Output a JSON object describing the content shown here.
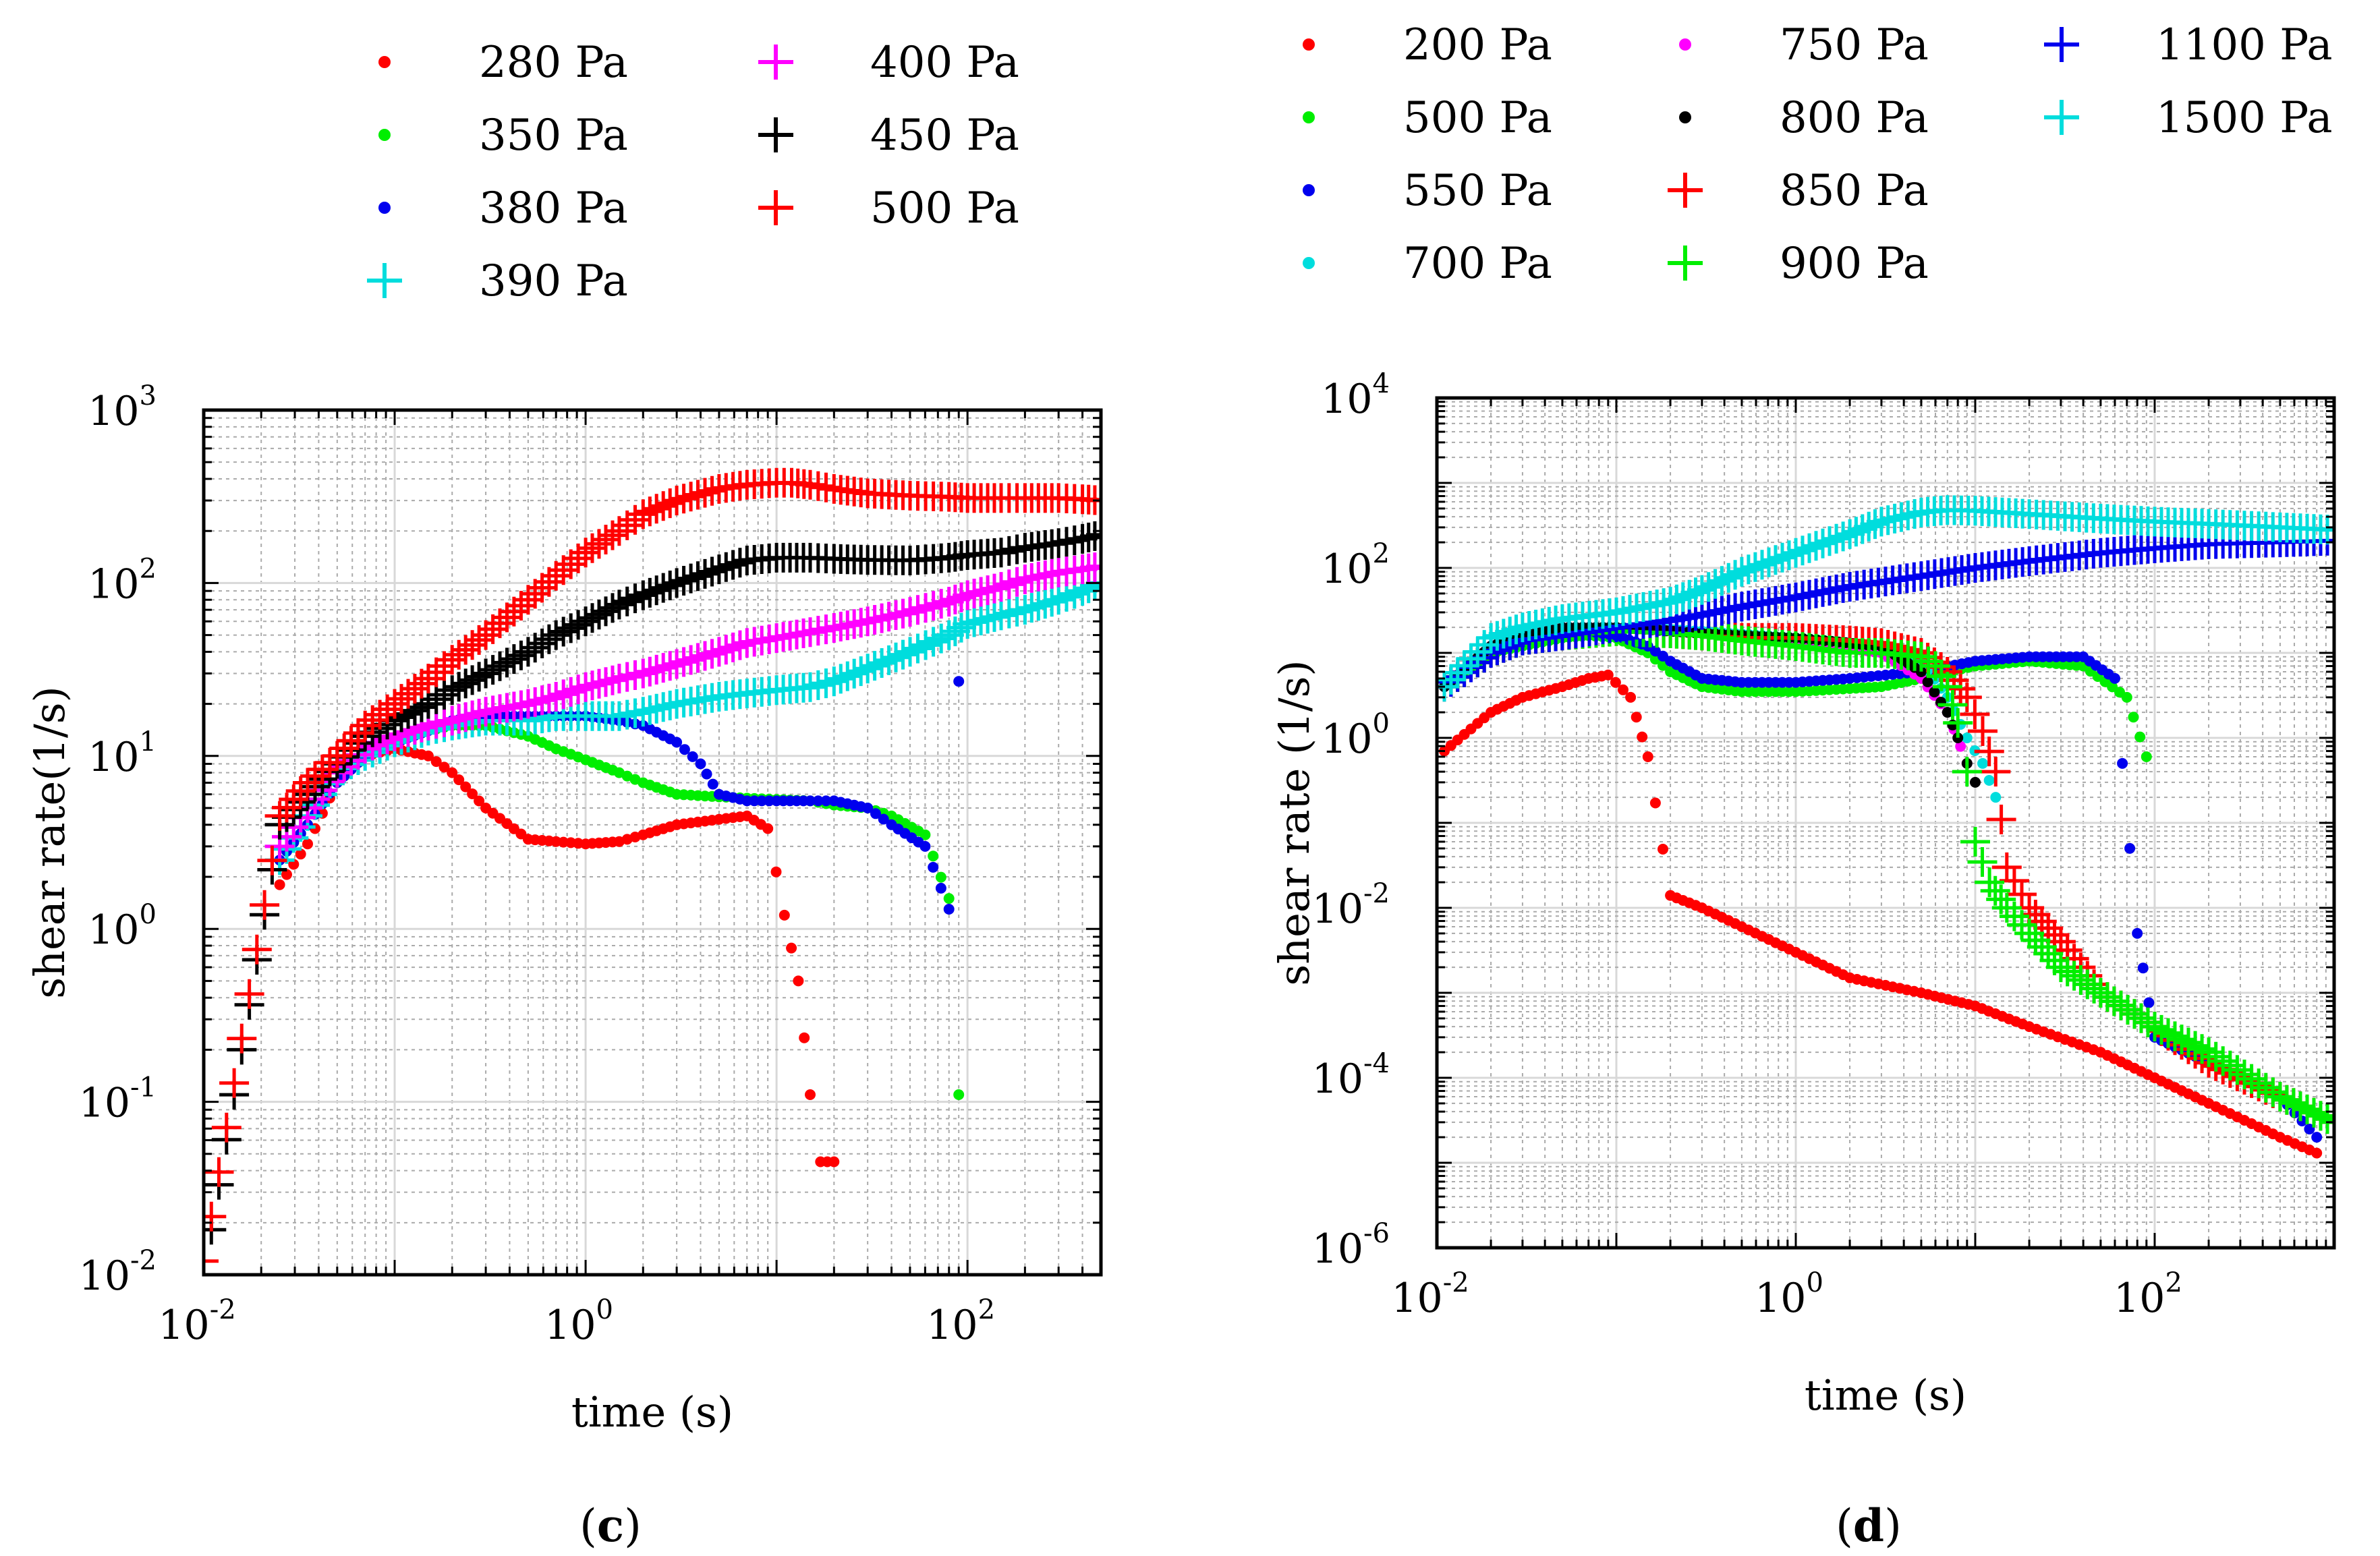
{
  "chart_data": [
    {
      "type": "scatter",
      "panel_label": "(c)",
      "xlabel": "time (s)",
      "ylabel": "shear rate(1/s)",
      "xscale": "log",
      "yscale": "log",
      "xlim": [
        0.01,
        500
      ],
      "ylim": [
        0.01,
        1000
      ],
      "xticks": [
        {
          "base": "10",
          "exp": "-2"
        },
        {
          "base": "10",
          "exp": "0"
        },
        {
          "base": "10",
          "exp": "2"
        }
      ],
      "yticks": [
        {
          "base": "10",
          "exp": "-2"
        },
        {
          "base": "10",
          "exp": "-1"
        },
        {
          "base": "10",
          "exp": "0"
        },
        {
          "base": "10",
          "exp": "1"
        },
        {
          "base": "10",
          "exp": "2"
        },
        {
          "base": "10",
          "exp": "3"
        }
      ],
      "grid": true,
      "legend_position": "top",
      "series": [
        {
          "name": "280 Pa",
          "marker": "dot",
          "color": "#ff0000",
          "x": [
            0.025,
            0.035,
            0.05,
            0.07,
            0.1,
            0.15,
            0.2,
            0.3,
            0.5,
            0.7,
            1,
            1.5,
            2,
            3,
            5,
            7,
            9,
            11,
            13,
            15,
            17,
            20
          ],
          "y": [
            1.8,
            3.1,
            7,
            10,
            11,
            10,
            8,
            5,
            3.3,
            3.2,
            3.1,
            3.2,
            3.5,
            4,
            4.3,
            4.5,
            3.8,
            1.2,
            0.5,
            0.11,
            0.045,
            0.045
          ]
        },
        {
          "name": "350 Pa",
          "marker": "dot",
          "color": "#00ee00",
          "x": [
            0.025,
            0.035,
            0.05,
            0.07,
            0.1,
            0.15,
            0.2,
            0.3,
            0.5,
            0.7,
            1,
            1.5,
            2,
            3,
            5,
            7,
            10,
            15,
            20,
            30,
            40,
            60,
            80,
            90
          ],
          "y": [
            2.5,
            4,
            7,
            10,
            12,
            14,
            15,
            15,
            13,
            11,
            9.5,
            8,
            7,
            6,
            5.8,
            5.7,
            5.6,
            5.5,
            5.2,
            5,
            4.5,
            3.5,
            1.5,
            0.11
          ]
        },
        {
          "name": "380 Pa",
          "marker": "dot",
          "color": "#0000ee",
          "x": [
            0.025,
            0.035,
            0.05,
            0.07,
            0.1,
            0.15,
            0.2,
            0.3,
            0.5,
            0.7,
            1,
            1.5,
            2,
            3,
            4,
            5,
            7,
            10,
            15,
            20,
            30,
            40,
            60,
            80,
            90
          ],
          "y": [
            2.5,
            4,
            7,
            10,
            12,
            14,
            16,
            17,
            17,
            17,
            17,
            16,
            15,
            12,
            9,
            6,
            5.5,
            5.5,
            5.5,
            5.5,
            5,
            4,
            3,
            1.3,
            27
          ]
        },
        {
          "name": "390 Pa",
          "marker": "plus",
          "color": "#00dddd",
          "x": [
            0.025,
            0.035,
            0.05,
            0.07,
            0.1,
            0.15,
            0.2,
            0.3,
            0.5,
            0.7,
            1,
            1.5,
            2,
            3,
            5,
            7,
            10,
            15,
            20,
            30,
            50,
            80,
            100,
            150,
            200,
            300,
            400,
            500
          ],
          "y": [
            2.5,
            4.5,
            8,
            10,
            12,
            14,
            15,
            16,
            16,
            17,
            17,
            17,
            18,
            20,
            22,
            23,
            24,
            25,
            27,
            32,
            40,
            50,
            58,
            65,
            70,
            80,
            90,
            100
          ]
        },
        {
          "name": "400 Pa",
          "marker": "plus",
          "color": "#ff00ff",
          "x": [
            0.025,
            0.035,
            0.05,
            0.07,
            0.1,
            0.15,
            0.2,
            0.3,
            0.5,
            0.7,
            1,
            1.5,
            2,
            3,
            5,
            7,
            10,
            15,
            20,
            30,
            50,
            80,
            100,
            150,
            200,
            300,
            400,
            500
          ],
          "y": [
            3,
            5,
            8,
            11,
            13,
            15,
            16,
            18,
            20,
            22,
            25,
            28,
            30,
            34,
            40,
            45,
            48,
            52,
            55,
            60,
            68,
            78,
            85,
            95,
            105,
            115,
            120,
            125
          ]
        },
        {
          "name": "450 Pa",
          "marker": "plus",
          "color": "#000000",
          "x": [
            0.01,
            0.025,
            0.035,
            0.05,
            0.07,
            0.1,
            0.15,
            0.2,
            0.3,
            0.5,
            0.7,
            1,
            1.5,
            2,
            3,
            5,
            7,
            10,
            15,
            20,
            30,
            50,
            80,
            100,
            150,
            200,
            300,
            400,
            500
          ],
          "y": [
            0.01,
            4,
            6,
            9,
            13,
            16,
            20,
            24,
            30,
            40,
            50,
            60,
            75,
            85,
            100,
            120,
            135,
            140,
            140,
            138,
            136,
            135,
            140,
            145,
            150,
            160,
            170,
            180,
            190
          ]
        },
        {
          "name": "500 Pa",
          "marker": "plus",
          "color": "#ff0000",
          "x": [
            0.01,
            0.025,
            0.035,
            0.05,
            0.07,
            0.1,
            0.15,
            0.2,
            0.3,
            0.5,
            0.7,
            1,
            1.5,
            2,
            3,
            5,
            7,
            10,
            12,
            15,
            20,
            30,
            50,
            80,
            100,
            150,
            200,
            300,
            400,
            500
          ],
          "y": [
            0.012,
            4.5,
            7,
            10,
            15,
            20,
            28,
            36,
            50,
            80,
            110,
            150,
            200,
            250,
            300,
            350,
            370,
            380,
            380,
            370,
            350,
            330,
            320,
            315,
            310,
            310,
            310,
            310,
            305,
            300
          ]
        }
      ]
    },
    {
      "type": "scatter",
      "panel_label": "(d)",
      "xlabel": "time (s)",
      "ylabel": "shear rate (1/s)",
      "xscale": "log",
      "yscale": "log",
      "xlim": [
        0.01,
        1000
      ],
      "ylim": [
        1e-06,
        10000
      ],
      "xticks": [
        {
          "base": "10",
          "exp": "-2"
        },
        {
          "base": "10",
          "exp": "0"
        },
        {
          "base": "10",
          "exp": "2"
        }
      ],
      "yticks": [
        {
          "base": "10",
          "exp": "-6"
        },
        {
          "base": "10",
          "exp": "-4"
        },
        {
          "base": "10",
          "exp": "-2"
        },
        {
          "base": "10",
          "exp": "0"
        },
        {
          "base": "10",
          "exp": "2"
        },
        {
          "base": "10",
          "exp": "4"
        }
      ],
      "grid": true,
      "legend_position": "top",
      "series": [
        {
          "name": "200 Pa",
          "marker": "dot",
          "color": "#ff0000",
          "x": [
            0.011,
            0.02,
            0.03,
            0.05,
            0.07,
            0.09,
            0.12,
            0.15,
            0.2,
            0.3,
            0.5,
            1,
            2,
            5,
            10,
            20,
            50,
            100,
            200,
            500,
            800
          ],
          "y": [
            0.7,
            2,
            3,
            4,
            5,
            5.5,
            3,
            0.6,
            0.014,
            0.01,
            0.006,
            0.003,
            0.0015,
            0.001,
            0.0007,
            0.0004,
            0.0002,
            0.0001,
            5e-05,
            2e-05,
            1.3e-05
          ]
        },
        {
          "name": "500 Pa",
          "marker": "dot",
          "color": "#00ee00",
          "x": [
            0.011,
            0.02,
            0.03,
            0.05,
            0.07,
            0.1,
            0.15,
            0.2,
            0.3,
            0.5,
            1,
            2,
            3,
            5,
            7,
            10,
            20,
            40,
            70,
            90
          ],
          "y": [
            4,
            10,
            12,
            15,
            16,
            15,
            10,
            6,
            4,
            3.5,
            3.5,
            3.8,
            4,
            5,
            6,
            7,
            8,
            7,
            3,
            0.6
          ]
        },
        {
          "name": "550 Pa",
          "marker": "dot",
          "color": "#0000ee",
          "x": [
            0.011,
            0.02,
            0.03,
            0.05,
            0.07,
            0.1,
            0.15,
            0.2,
            0.3,
            0.5,
            1,
            2,
            5,
            10,
            20,
            40,
            60,
            80,
            100,
            200,
            500,
            800
          ],
          "y": [
            4,
            12,
            15,
            18,
            18,
            16,
            12,
            8,
            5,
            4.5,
            4.5,
            5,
            6,
            8,
            9,
            9,
            5,
            0.005,
            0.0003,
            0.00015,
            6e-05,
            2e-05
          ]
        },
        {
          "name": "700 Pa",
          "marker": "dot",
          "color": "#00dddd",
          "x": [
            0.011,
            0.02,
            0.03,
            0.05,
            0.1,
            0.3,
            1,
            3,
            5,
            7,
            9,
            11,
            13
          ],
          "y": [
            4,
            12,
            16,
            20,
            20,
            18,
            15,
            12,
            8,
            3,
            1,
            0.5,
            0.2
          ]
        },
        {
          "name": "750 Pa",
          "marker": "dot",
          "color": "#ff00ff",
          "x": [
            0.011,
            0.02,
            0.03,
            0.05,
            0.1,
            0.3,
            1,
            3,
            5,
            7,
            9
          ],
          "y": [
            4,
            12,
            16,
            20,
            20,
            17,
            14,
            10,
            5,
            2,
            0.5
          ]
        },
        {
          "name": "800 Pa",
          "marker": "dot",
          "color": "#000000",
          "x": [
            0.011,
            0.02,
            0.03,
            0.05,
            0.1,
            0.3,
            1,
            3,
            5,
            7,
            8,
            9,
            10
          ],
          "y": [
            4,
            12,
            16,
            20,
            20,
            17,
            15,
            12,
            6,
            2,
            1,
            0.5,
            0.3
          ]
        },
        {
          "name": "850 Pa",
          "marker": "plus",
          "color": "#ff0000",
          "x": [
            0.011,
            0.02,
            0.03,
            0.05,
            0.1,
            0.2,
            0.3,
            0.5,
            1,
            2,
            3,
            5,
            7,
            9,
            11,
            13,
            15,
            20,
            30,
            50,
            100,
            200,
            500,
            1000
          ],
          "y": [
            4,
            10,
            14,
            16,
            18,
            17,
            16,
            15,
            15,
            14,
            13,
            10,
            6,
            3,
            1.2,
            0.4,
            0.03,
            0.01,
            0.004,
            0.001,
            0.0004,
            0.00015,
            6e-05,
            3e-05
          ]
        },
        {
          "name": "900 Pa",
          "marker": "plus",
          "color": "#00ee00",
          "x": [
            0.011,
            0.02,
            0.03,
            0.05,
            0.1,
            0.2,
            0.3,
            0.5,
            1,
            2,
            3,
            5,
            6,
            7,
            8,
            9,
            10,
            12,
            15,
            20,
            30,
            50,
            100,
            200,
            500,
            1000
          ],
          "y": [
            4,
            10,
            14,
            16,
            18,
            17,
            16,
            14,
            12,
            10,
            10,
            9,
            7,
            4,
            1.5,
            0.4,
            0.06,
            0.02,
            0.01,
            0.005,
            0.002,
            0.001,
            0.0004,
            0.0002,
            6e-05,
            3e-05
          ]
        },
        {
          "name": "1100 Pa",
          "marker": "plus",
          "color": "#0000ee",
          "x": [
            0.011,
            0.02,
            0.03,
            0.05,
            0.1,
            0.2,
            0.3,
            0.5,
            1,
            2,
            5,
            10,
            20,
            50,
            100,
            200,
            500,
            1000
          ],
          "y": [
            4,
            10,
            14,
            16,
            20,
            24,
            28,
            35,
            45,
            60,
            80,
            100,
            120,
            150,
            170,
            190,
            200,
            210
          ]
        },
        {
          "name": "1500 Pa",
          "marker": "plus",
          "color": "#00dddd",
          "x": [
            0.011,
            0.02,
            0.03,
            0.05,
            0.1,
            0.2,
            0.3,
            0.5,
            1,
            2,
            3,
            5,
            7,
            10,
            20,
            50,
            100,
            200,
            500,
            1000
          ],
          "y": [
            4,
            15,
            20,
            25,
            30,
            40,
            55,
            90,
            150,
            250,
            350,
            450,
            480,
            470,
            430,
            380,
            350,
            330,
            300,
            280
          ]
        }
      ]
    }
  ]
}
